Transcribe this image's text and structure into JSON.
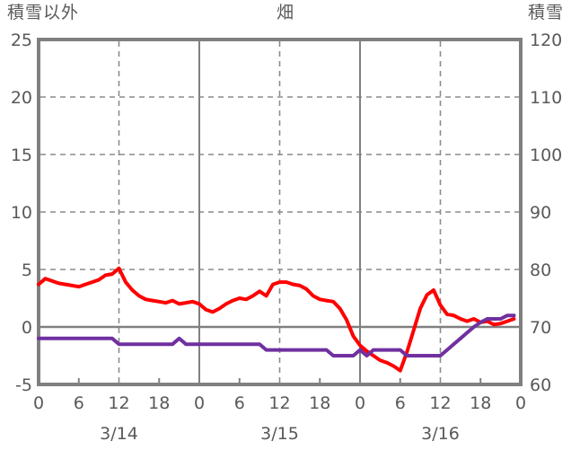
{
  "header": {
    "left_axis_title": "積雪以外",
    "title": "畑",
    "right_axis_title": "積雪"
  },
  "chart_data": {
    "type": "line",
    "title": "畑",
    "x_unit": "hour",
    "x_start_hour": 0,
    "x_total_hours": 72,
    "x_tick_every_hours": 6,
    "x_tick_labels": [
      "0",
      "6",
      "12",
      "18",
      "0",
      "6",
      "12",
      "18",
      "0",
      "6",
      "12",
      "18",
      "0"
    ],
    "date_labels": [
      "3/14",
      "3/15",
      "3/16"
    ],
    "left_axis": {
      "title": "積雪以外",
      "ticks": [
        25,
        20,
        15,
        10,
        5,
        0,
        -5
      ],
      "range": [
        -5,
        25
      ]
    },
    "right_axis": {
      "title": "積雪",
      "ticks": [
        120,
        110,
        100,
        90,
        80,
        70,
        60
      ],
      "range": [
        60,
        120
      ]
    },
    "grid": {
      "h_dashed_values_left": [
        20,
        15,
        10,
        5
      ],
      "zero_line_left": 0,
      "v_solid_hours": [
        24,
        48
      ],
      "v_dashed_hours": [
        12,
        36,
        60
      ],
      "minor_tick_hours": [
        6,
        18,
        30,
        42,
        54,
        66
      ]
    },
    "series": [
      {
        "name": "積雪以外",
        "axis": "left",
        "color": "#fe0000",
        "values": [
          3.7,
          4.2,
          4.0,
          3.8,
          3.7,
          3.6,
          3.5,
          3.7,
          3.9,
          4.1,
          4.5,
          4.6,
          5.1,
          3.9,
          3.2,
          2.7,
          2.4,
          2.3,
          2.2,
          2.1,
          2.3,
          2.0,
          2.1,
          2.2,
          2.0,
          1.5,
          1.3,
          1.6,
          2.0,
          2.3,
          2.5,
          2.4,
          2.7,
          3.1,
          2.7,
          3.7,
          3.9,
          3.9,
          3.7,
          3.6,
          3.3,
          2.7,
          2.4,
          2.3,
          2.2,
          1.6,
          0.6,
          -0.8,
          -1.6,
          -2.1,
          -2.5,
          -2.9,
          -3.1,
          -3.4,
          -3.8,
          -2.2,
          -0.3,
          1.6,
          2.8,
          3.2,
          1.9,
          1.1,
          1.0,
          0.7,
          0.5,
          0.7,
          0.4,
          0.5,
          0.2,
          0.3,
          0.5,
          0.7
        ]
      },
      {
        "name": "積雪",
        "axis": "right",
        "color": "#7030a0",
        "values": [
          68,
          68,
          68,
          68,
          68,
          68,
          68,
          68,
          68,
          68,
          68,
          68,
          67,
          67,
          67,
          67,
          67,
          67,
          67,
          67,
          67,
          68,
          67,
          67,
          67,
          67,
          67,
          67,
          67,
          67,
          67,
          67,
          67,
          67,
          66,
          66,
          66,
          66,
          66,
          66,
          66,
          66,
          66,
          66,
          65,
          65,
          65,
          65,
          66,
          65,
          66,
          66,
          66,
          66,
          66,
          65,
          65,
          65,
          65,
          65,
          65,
          66,
          67,
          68,
          69,
          70,
          70.8,
          71.4,
          71.4,
          71.4,
          72,
          72
        ]
      }
    ],
    "colors": {
      "border": "#808080",
      "grid": "#8c8c8c",
      "zero_line": "#808080",
      "text": "#595959",
      "background": "#ffffff"
    },
    "legend": "none"
  }
}
